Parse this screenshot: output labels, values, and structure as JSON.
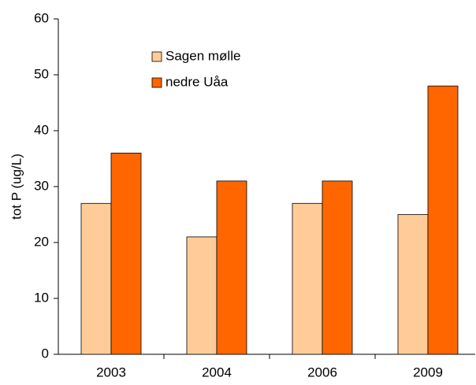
{
  "chart_data": {
    "type": "bar",
    "y_label": "tot P (ug/L)",
    "categories": [
      "2003",
      "2004",
      "2006",
      "2009"
    ],
    "series": [
      {
        "name": "Sagen mølle",
        "color": "#FFCC99",
        "values": [
          27,
          21,
          27,
          25
        ]
      },
      {
        "name": "nedre Uåa",
        "color": "#FF6600",
        "values": [
          36,
          31,
          31,
          48
        ]
      }
    ],
    "ylim": [
      0,
      60
    ],
    "yticks": [
      0,
      10,
      20,
      30,
      40,
      50,
      60
    ],
    "grid": false,
    "legend": "top-left"
  }
}
